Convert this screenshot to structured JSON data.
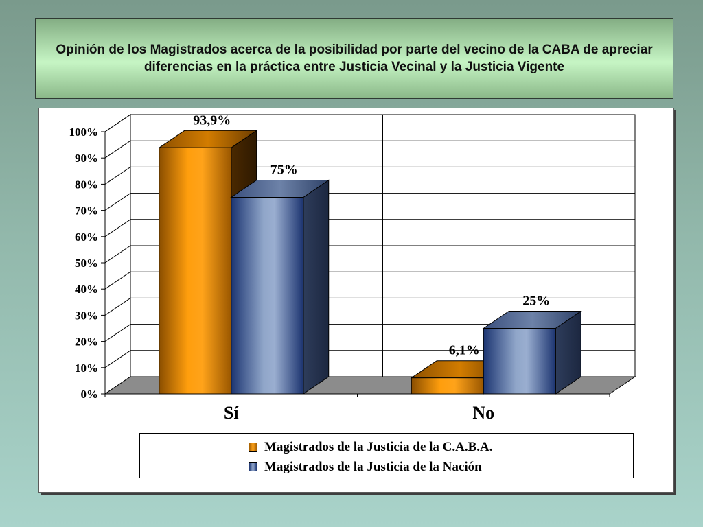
{
  "title": "Opinión de los Magistrados acerca de la posibilidad por parte del vecino de la CABA de apreciar diferencias en la práctica entre Justicia Vecinal y la Justicia Vigente",
  "chart_data": {
    "type": "bar",
    "style": "3d-clustered-column",
    "categories": [
      "Sí",
      "No"
    ],
    "series": [
      {
        "name": "Magistrados de la Justicia de la C.A.B.A.",
        "values": [
          93.9,
          6.1
        ],
        "labels": [
          "93,9%",
          "6,1%"
        ],
        "color": "#ff9900"
      },
      {
        "name": "Magistrados de la Justicia de la Nación",
        "values": [
          75,
          25
        ],
        "labels": [
          "75%",
          "25%"
        ],
        "color": "#8fa6c8"
      }
    ],
    "ylim": [
      0,
      100
    ],
    "yticks": [
      "0%",
      "10%",
      "20%",
      "30%",
      "40%",
      "50%",
      "60%",
      "70%",
      "80%",
      "90%",
      "100%"
    ],
    "grid": true,
    "legend_position": "bottom"
  }
}
